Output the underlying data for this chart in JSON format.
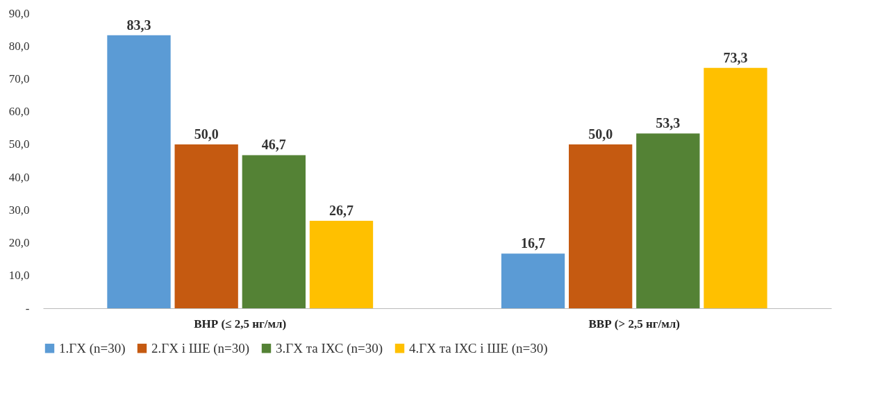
{
  "chart_data": {
    "type": "bar",
    "categories": [
      "ВНР (≤ 2,5 нг/мл)",
      "ВВР (> 2,5 нг/мл)"
    ],
    "series": [
      {
        "name": "1.ГХ (n=30)",
        "color": "#5b9bd5",
        "values": [
          83.3,
          16.7
        ],
        "value_labels": [
          "83,3",
          "16,7"
        ]
      },
      {
        "name": "2.ГХ і ШЕ (n=30)",
        "color": "#c55a11",
        "values": [
          50.0,
          50.0
        ],
        "value_labels": [
          "50,0",
          "50,0"
        ]
      },
      {
        "name": "3.ГХ та ІХС (n=30)",
        "color": "#548235",
        "values": [
          46.7,
          53.3
        ],
        "value_labels": [
          "46,7",
          "53,3"
        ]
      },
      {
        "name": "4.ГХ та ІХС і ШЕ (n=30)",
        "color": "#ffc000",
        "values": [
          26.7,
          73.3
        ],
        "value_labels": [
          "26,7",
          "73,3"
        ]
      }
    ],
    "ylim": [
      0,
      90
    ],
    "yticks": [
      {
        "value": 0,
        "label": "-"
      },
      {
        "value": 10,
        "label": "10,0"
      },
      {
        "value": 20,
        "label": "20,0"
      },
      {
        "value": 30,
        "label": "30,0"
      },
      {
        "value": 40,
        "label": "40,0"
      },
      {
        "value": 50,
        "label": "50,0"
      },
      {
        "value": 60,
        "label": "60,0"
      },
      {
        "value": 70,
        "label": "70,0"
      },
      {
        "value": 80,
        "label": "80,0"
      },
      {
        "value": 90,
        "label": "90,0"
      }
    ],
    "grid": false,
    "legend": "bottom"
  }
}
